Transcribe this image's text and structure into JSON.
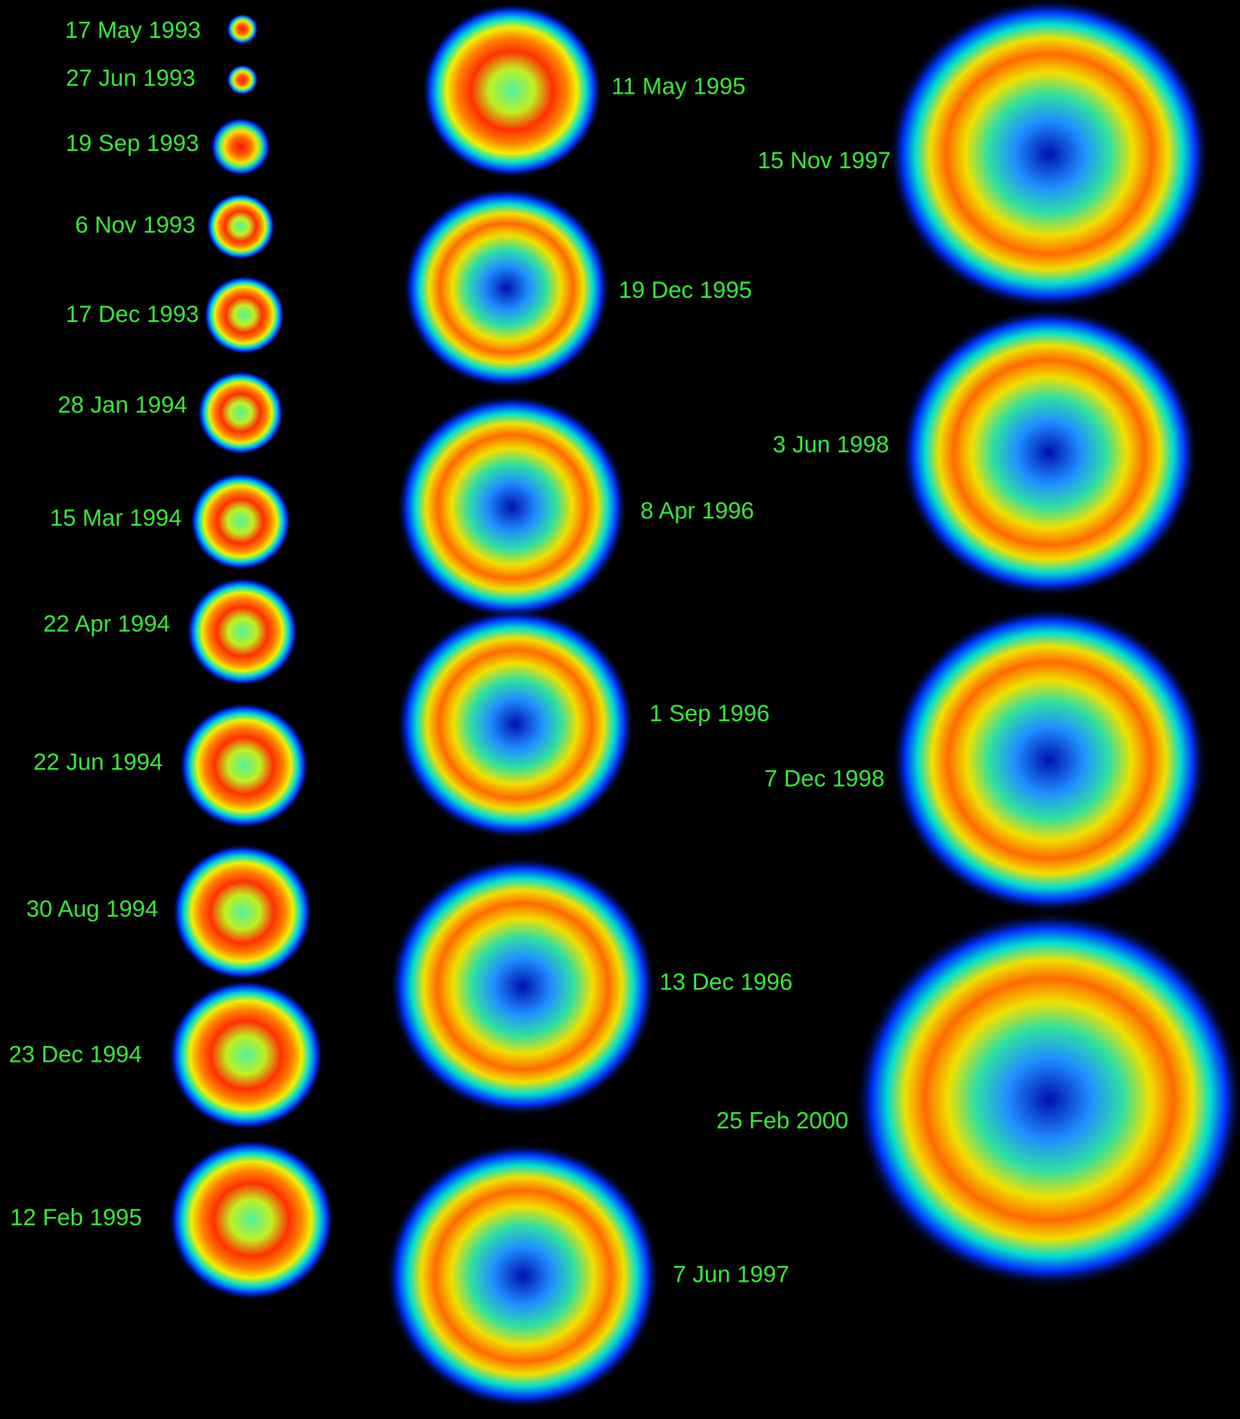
{
  "epochs": [
    "17 May 1993",
    "27 Jun 1993",
    "19 Sep 1993",
    "6 Nov 1993",
    "17 Dec 1993",
    "28 Jan 1994",
    "15 Mar 1994",
    "22 Apr 1994",
    "22 Jun 1994",
    "30 Aug 1994",
    "23 Dec 1994",
    "12 Feb 1995",
    "11 May 1995",
    "19 Dec 1995",
    "8 Apr 1996",
    "1 Sep 1996",
    "13 Dec 1996",
    "7 Jun 1997",
    "15 Nov 1997",
    "3 Jun 1998",
    "7 Dec 1998",
    "25 Feb 2000"
  ]
}
